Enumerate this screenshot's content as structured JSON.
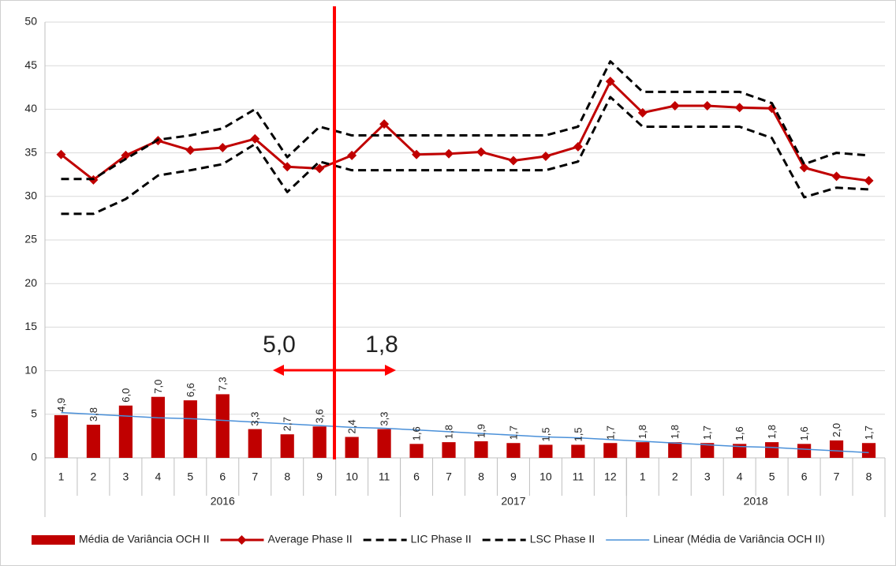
{
  "chart_data": {
    "type": "combo",
    "categories": [
      "1",
      "2",
      "3",
      "4",
      "5",
      "6",
      "7",
      "8",
      "9",
      "10",
      "11",
      "6",
      "7",
      "8",
      "9",
      "10",
      "11",
      "12",
      "1",
      "2",
      "3",
      "4",
      "5",
      "6",
      "7",
      "8"
    ],
    "groups": [
      "2016",
      "2017",
      "2018"
    ],
    "series": [
      {
        "name": "Média de Variância OCH II",
        "type": "bar",
        "color": "#c00000",
        "values": [
          4.9,
          3.8,
          6.0,
          7.0,
          6.6,
          7.3,
          3.3,
          2.7,
          3.6,
          2.4,
          3.3,
          1.6,
          1.8,
          1.9,
          1.7,
          1.5,
          1.5,
          1.7,
          1.8,
          1.8,
          1.7,
          1.6,
          1.8,
          1.6,
          2.0,
          1.7
        ],
        "value_labels": [
          "4,9",
          "3,8",
          "6,0",
          "7,0",
          "6,6",
          "7,3",
          "3,3",
          "2,7",
          "3,6",
          "2,4",
          "3,3",
          "1,6",
          "1,8",
          "1,9",
          "1,7",
          "1,5",
          "1,5",
          "1,7",
          "1,8",
          "1,8",
          "1,7",
          "1,6",
          "1,8",
          "1,6",
          "2,0",
          "1,7"
        ]
      },
      {
        "name": "Average Phase II",
        "type": "line",
        "marker": "diamond",
        "color": "#c00000",
        "values": [
          34.8,
          31.9,
          34.7,
          36.4,
          35.3,
          35.6,
          36.6,
          33.4,
          33.2,
          34.7,
          38.3,
          34.8,
          34.9,
          35.1,
          34.1,
          34.6,
          35.7,
          43.2,
          39.6,
          40.4,
          40.4,
          40.2,
          40.1,
          33.3,
          32.3,
          31.8
        ]
      },
      {
        "name": "LIC Phase II",
        "type": "line",
        "dash": true,
        "color": "#000000",
        "values": [
          28,
          28,
          29.7,
          32.4,
          33,
          33.7,
          36,
          30.5,
          34,
          33,
          33,
          33,
          33,
          33,
          33,
          33,
          34,
          41.4,
          38,
          38,
          38,
          38,
          36.7,
          29.9,
          31,
          30.8
        ]
      },
      {
        "name": "LSC Phase II",
        "type": "line",
        "dash": true,
        "color": "#000000",
        "values": [
          32,
          32,
          34.3,
          36.5,
          37,
          37.8,
          40,
          34.5,
          38,
          37,
          37,
          37,
          37,
          37,
          37,
          37,
          38,
          45.5,
          42,
          42,
          42,
          42,
          40.7,
          33.7,
          35,
          34.7
        ]
      },
      {
        "name": "Linear (Média de Variância OCH II)",
        "type": "line",
        "thin": true,
        "color": "#4a90d9",
        "values": [
          5.2,
          5.0,
          4.8,
          4.6,
          4.5,
          4.3,
          4.1,
          3.9,
          3.7,
          3.5,
          3.4,
          3.2,
          3.0,
          2.8,
          2.6,
          2.4,
          2.3,
          2.1,
          1.9,
          1.7,
          1.5,
          1.3,
          1.2,
          1.0,
          0.8,
          0.6
        ]
      }
    ],
    "annotations": [
      "5,0",
      "1,8"
    ],
    "ylim": [
      0,
      50
    ],
    "yticks": [
      0,
      5,
      10,
      15,
      20,
      25,
      30,
      35,
      40,
      45,
      50
    ],
    "grid": true,
    "legend": "bottom"
  }
}
